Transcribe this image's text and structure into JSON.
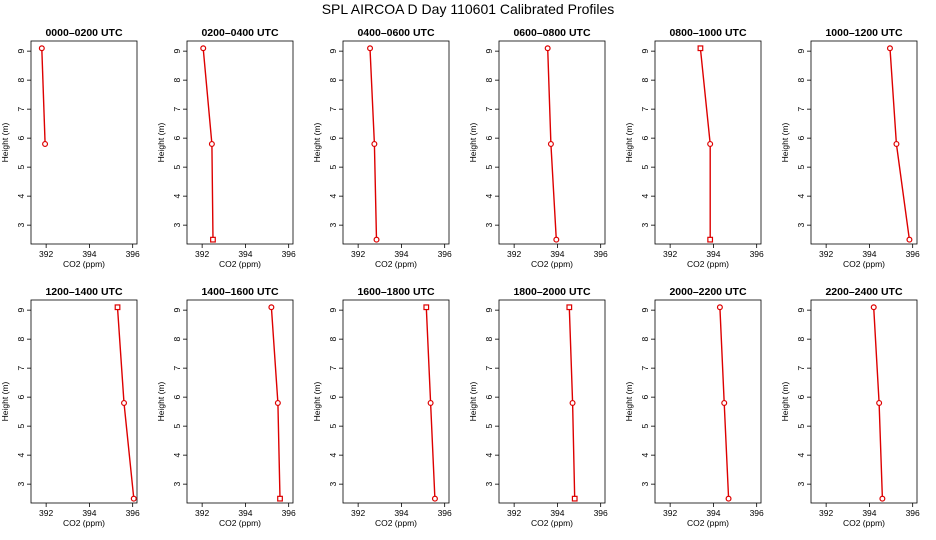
{
  "title": "SPL AIRCOA D  Day 110601  Calibrated Profiles",
  "colors": {
    "line": "#dd0000",
    "marker": "#dd0000",
    "axis": "#000000"
  },
  "chart_data": [
    {
      "type": "line",
      "title": "0000–0200 UTC",
      "xlabel": "CO2 (ppm)",
      "ylabel": "Height (m)",
      "xlim": [
        391.3,
        396.2
      ],
      "ylim": [
        2.35,
        9.35
      ],
      "xticks": [
        392,
        394,
        396
      ],
      "yticks": [
        3,
        4,
        5,
        6,
        7,
        8,
        9
      ],
      "x": [
        391.95,
        391.8
      ],
      "y": [
        5.8,
        9.1
      ],
      "markers": [
        "circle",
        "circle"
      ]
    },
    {
      "type": "line",
      "title": "0200–0400 UTC",
      "xlabel": "CO2 (ppm)",
      "ylabel": "Height (m)",
      "xlim": [
        391.3,
        396.2
      ],
      "ylim": [
        2.35,
        9.35
      ],
      "xticks": [
        392,
        394,
        396
      ],
      "yticks": [
        3,
        4,
        5,
        6,
        7,
        8,
        9
      ],
      "x": [
        392.5,
        392.45,
        392.05
      ],
      "y": [
        2.5,
        5.8,
        9.1
      ],
      "markers": [
        "square",
        "circle",
        "circle"
      ]
    },
    {
      "type": "line",
      "title": "0400–0600 UTC",
      "xlabel": "CO2 (ppm)",
      "ylabel": "Height (m)",
      "xlim": [
        391.3,
        396.2
      ],
      "ylim": [
        2.35,
        9.35
      ],
      "xticks": [
        392,
        394,
        396
      ],
      "yticks": [
        3,
        4,
        5,
        6,
        7,
        8,
        9
      ],
      "x": [
        392.85,
        392.75,
        392.55
      ],
      "y": [
        2.5,
        5.8,
        9.1
      ],
      "markers": [
        "circle",
        "circle",
        "circle"
      ]
    },
    {
      "type": "line",
      "title": "0600–0800 UTC",
      "xlabel": "CO2 (ppm)",
      "ylabel": "Height (m)",
      "xlim": [
        391.3,
        396.2
      ],
      "ylim": [
        2.35,
        9.35
      ],
      "xticks": [
        392,
        394,
        396
      ],
      "yticks": [
        3,
        4,
        5,
        6,
        7,
        8,
        9
      ],
      "x": [
        393.95,
        393.7,
        393.55
      ],
      "y": [
        2.5,
        5.8,
        9.1
      ],
      "markers": [
        "circle",
        "circle",
        "circle"
      ]
    },
    {
      "type": "line",
      "title": "0800–1000 UTC",
      "xlabel": "CO2 (ppm)",
      "ylabel": "Height (m)",
      "xlim": [
        391.3,
        396.2
      ],
      "ylim": [
        2.35,
        9.35
      ],
      "xticks": [
        392,
        394,
        396
      ],
      "yticks": [
        3,
        4,
        5,
        6,
        7,
        8,
        9
      ],
      "x": [
        393.85,
        393.85,
        393.4
      ],
      "y": [
        2.5,
        5.8,
        9.1
      ],
      "markers": [
        "square",
        "circle",
        "square"
      ]
    },
    {
      "type": "line",
      "title": "1000–1200 UTC",
      "xlabel": "CO2 (ppm)",
      "ylabel": "Height (m)",
      "xlim": [
        391.3,
        396.2
      ],
      "ylim": [
        2.35,
        9.35
      ],
      "xticks": [
        392,
        394,
        396
      ],
      "yticks": [
        3,
        4,
        5,
        6,
        7,
        8,
        9
      ],
      "x": [
        395.85,
        395.25,
        394.95
      ],
      "y": [
        2.5,
        5.8,
        9.1
      ],
      "markers": [
        "circle",
        "circle",
        "circle"
      ]
    },
    {
      "type": "line",
      "title": "1200–1400 UTC",
      "xlabel": "CO2 (ppm)",
      "ylabel": "Height (m)",
      "xlim": [
        391.3,
        396.2
      ],
      "ylim": [
        2.35,
        9.35
      ],
      "xticks": [
        392,
        394,
        396
      ],
      "yticks": [
        3,
        4,
        5,
        6,
        7,
        8,
        9
      ],
      "x": [
        396.05,
        395.6,
        395.3
      ],
      "y": [
        2.5,
        5.8,
        9.1
      ],
      "markers": [
        "circle",
        "circle",
        "square"
      ]
    },
    {
      "type": "line",
      "title": "1400–1600 UTC",
      "xlabel": "CO2 (ppm)",
      "ylabel": "Height (m)",
      "xlim": [
        391.3,
        396.2
      ],
      "ylim": [
        2.35,
        9.35
      ],
      "xticks": [
        392,
        394,
        396
      ],
      "yticks": [
        3,
        4,
        5,
        6,
        7,
        8,
        9
      ],
      "x": [
        395.6,
        395.5,
        395.2
      ],
      "y": [
        2.5,
        5.8,
        9.1
      ],
      "markers": [
        "square",
        "circle",
        "circle"
      ]
    },
    {
      "type": "line",
      "title": "1600–1800 UTC",
      "xlabel": "CO2 (ppm)",
      "ylabel": "Height (m)",
      "xlim": [
        391.3,
        396.2
      ],
      "ylim": [
        2.35,
        9.35
      ],
      "xticks": [
        392,
        394,
        396
      ],
      "yticks": [
        3,
        4,
        5,
        6,
        7,
        8,
        9
      ],
      "x": [
        395.55,
        395.35,
        395.15
      ],
      "y": [
        2.5,
        5.8,
        9.1
      ],
      "markers": [
        "circle",
        "circle",
        "square"
      ]
    },
    {
      "type": "line",
      "title": "1800–2000 UTC",
      "xlabel": "CO2 (ppm)",
      "ylabel": "Height (m)",
      "xlim": [
        391.3,
        396.2
      ],
      "ylim": [
        2.35,
        9.35
      ],
      "xticks": [
        392,
        394,
        396
      ],
      "yticks": [
        3,
        4,
        5,
        6,
        7,
        8,
        9
      ],
      "x": [
        394.8,
        394.7,
        394.55
      ],
      "y": [
        2.5,
        5.8,
        9.1
      ],
      "markers": [
        "square",
        "circle",
        "square"
      ]
    },
    {
      "type": "line",
      "title": "2000–2200 UTC",
      "xlabel": "CO2 (ppm)",
      "ylabel": "Height (m)",
      "xlim": [
        391.3,
        396.2
      ],
      "ylim": [
        2.35,
        9.35
      ],
      "xticks": [
        392,
        394,
        396
      ],
      "yticks": [
        3,
        4,
        5,
        6,
        7,
        8,
        9
      ],
      "x": [
        394.7,
        394.5,
        394.3
      ],
      "y": [
        2.5,
        5.8,
        9.1
      ],
      "markers": [
        "circle",
        "circle",
        "circle"
      ]
    },
    {
      "type": "line",
      "title": "2200–2400 UTC",
      "xlabel": "CO2 (ppm)",
      "ylabel": "Height (m)",
      "xlim": [
        391.3,
        396.2
      ],
      "ylim": [
        2.35,
        9.35
      ],
      "xticks": [
        392,
        394,
        396
      ],
      "yticks": [
        3,
        4,
        5,
        6,
        7,
        8,
        9
      ],
      "x": [
        394.6,
        394.45,
        394.2
      ],
      "y": [
        2.5,
        5.8,
        9.1
      ],
      "markers": [
        "circle",
        "circle",
        "circle"
      ]
    }
  ]
}
